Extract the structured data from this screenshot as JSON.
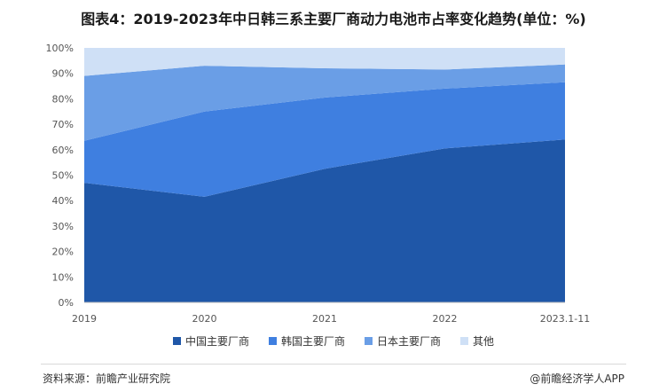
{
  "title": "图表4：2019-2023年中日韩三系主要厂商动力电池市占率变化趋势(单位：%)",
  "footer": {
    "source": "资料来源：前瞻产业研究院",
    "brand": "@前瞻经济学人APP"
  },
  "colors": {
    "china": "#1f57a8",
    "korea": "#3f7fe0",
    "japan": "#6a9ee6",
    "other": "#cfe0f6"
  },
  "chart_data": {
    "type": "area",
    "stacked": true,
    "categories": [
      "2019",
      "2020",
      "2021",
      "2022",
      "2023.1-11"
    ],
    "ylim": [
      0,
      100
    ],
    "yticks": [
      "0%",
      "10%",
      "20%",
      "30%",
      "40%",
      "50%",
      "60%",
      "70%",
      "80%",
      "90%",
      "100%"
    ],
    "legend_position": "bottom",
    "series": [
      {
        "name": "中国主要厂商",
        "values": [
          47,
          41.5,
          52.5,
          60.5,
          64
        ]
      },
      {
        "name": "韩国主要厂商",
        "values": [
          16.5,
          33.5,
          28,
          23.5,
          22.5
        ]
      },
      {
        "name": "日本主要厂商",
        "values": [
          25.5,
          18,
          11.5,
          7.5,
          7
        ]
      },
      {
        "name": "其他",
        "values": [
          11,
          7,
          8,
          8.5,
          6.5
        ]
      }
    ]
  }
}
